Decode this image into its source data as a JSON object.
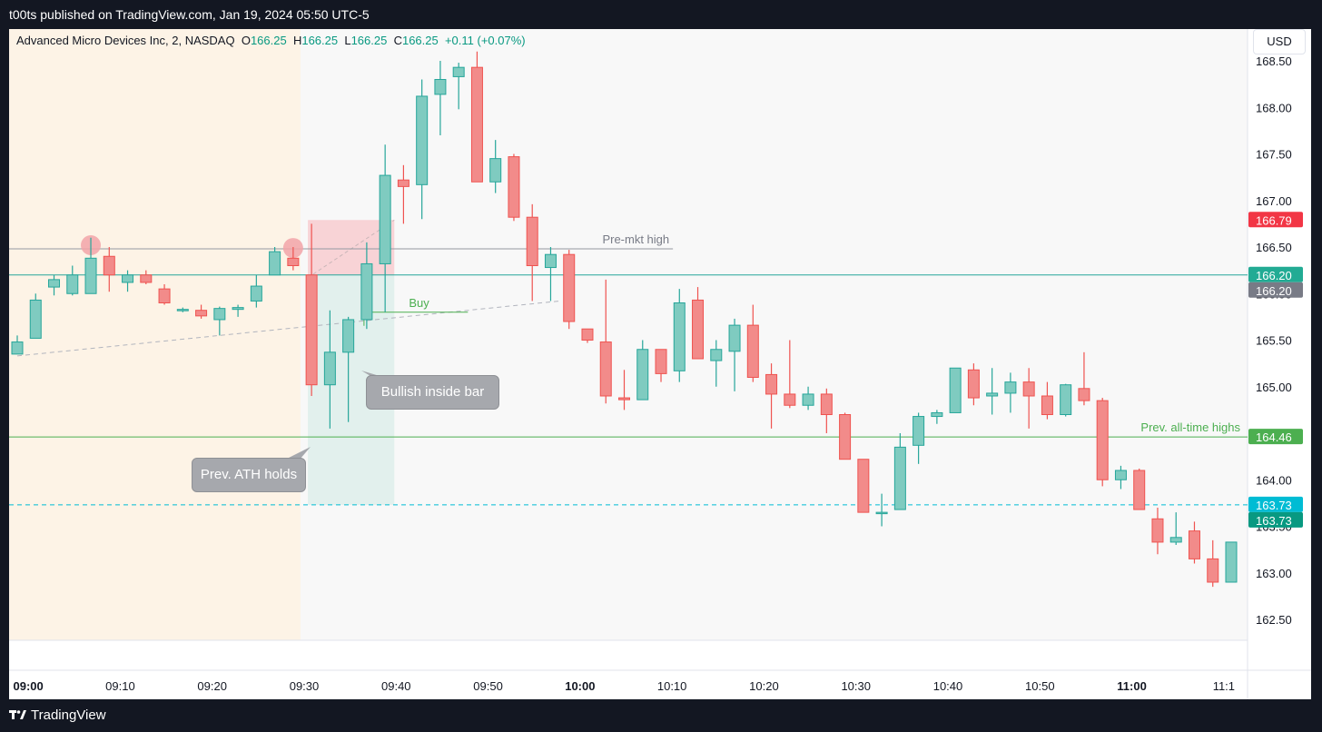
{
  "header": {
    "published_text": "t00ts published on TradingView.com, Jan 19, 2024 05:50 UTC-5"
  },
  "legend": {
    "symbol": "Advanced Micro Devices Inc, 2, NASDAQ",
    "o_label": "O",
    "o_value": "166.25",
    "h_label": "H",
    "h_value": "166.25",
    "l_label": "L",
    "l_value": "166.25",
    "c_label": "C",
    "c_value": "166.25",
    "change": "+0.11 (+0.07%)"
  },
  "currency_button": "USD",
  "footer": {
    "brand": "TradingView"
  },
  "colors": {
    "up": "#26a69a",
    "up_fill": "#7fcbc0",
    "down": "#ef5350",
    "down_fill": "#f28b8a",
    "premarket_bg": "#fdf3e6",
    "plot_bg": "#f8f8f8",
    "green_line": "#4caf50",
    "teal_line": "#26a69a",
    "cyan_dash": "#00bcd4"
  },
  "chart_data": {
    "type": "candlestick",
    "interval_minutes": 2,
    "ylim": [
      162.2,
      168.95
    ],
    "xlim": [
      "08:59",
      "11:12"
    ],
    "y_ticks": [
      "162.50",
      "163.00",
      "163.50",
      "164.00",
      "164.50",
      "165.00",
      "165.50",
      "166.00",
      "166.50",
      "167.00",
      "167.50",
      "168.00",
      "168.50"
    ],
    "x_ticks": [
      {
        "label": "09:00",
        "bold": true
      },
      {
        "label": "09:10",
        "bold": false
      },
      {
        "label": "09:20",
        "bold": false
      },
      {
        "label": "09:30",
        "bold": false
      },
      {
        "label": "09:40",
        "bold": false
      },
      {
        "label": "09:50",
        "bold": false
      },
      {
        "label": "10:00",
        "bold": true
      },
      {
        "label": "10:10",
        "bold": false
      },
      {
        "label": "10:20",
        "bold": false
      },
      {
        "label": "10:30",
        "bold": false
      },
      {
        "label": "10:40",
        "bold": false
      },
      {
        "label": "10:50",
        "bold": false
      },
      {
        "label": "11:00",
        "bold": true
      },
      {
        "label": "11:1",
        "bold": false
      }
    ],
    "premarket_until": "09:29",
    "candles": [
      {
        "t": "08:59",
        "o": 165.35,
        "h": 165.55,
        "l": 165.35,
        "c": 165.48
      },
      {
        "t": "09:01",
        "o": 165.52,
        "h": 166.0,
        "l": 165.52,
        "c": 165.93
      },
      {
        "t": "09:03",
        "o": 166.07,
        "h": 166.2,
        "l": 165.98,
        "c": 166.15
      },
      {
        "t": "09:05",
        "o": 166.0,
        "h": 166.3,
        "l": 165.98,
        "c": 166.2
      },
      {
        "t": "09:07",
        "o": 166.0,
        "h": 166.6,
        "l": 166.0,
        "c": 166.38
      },
      {
        "t": "09:09",
        "o": 166.4,
        "h": 166.5,
        "l": 166.02,
        "c": 166.2
      },
      {
        "t": "09:11",
        "o": 166.12,
        "h": 166.25,
        "l": 166.02,
        "c": 166.2
      },
      {
        "t": "09:13",
        "o": 166.2,
        "h": 166.25,
        "l": 166.1,
        "c": 166.12
      },
      {
        "t": "09:15",
        "o": 166.05,
        "h": 166.1,
        "l": 165.88,
        "c": 165.9
      },
      {
        "t": "09:17",
        "o": 165.83,
        "h": 165.85,
        "l": 165.8,
        "c": 165.83
      },
      {
        "t": "09:19",
        "o": 165.82,
        "h": 165.88,
        "l": 165.73,
        "c": 165.76
      },
      {
        "t": "09:21",
        "o": 165.72,
        "h": 165.86,
        "l": 165.55,
        "c": 165.84
      },
      {
        "t": "09:23",
        "o": 165.83,
        "h": 165.88,
        "l": 165.75,
        "c": 165.85
      },
      {
        "t": "09:25",
        "o": 165.92,
        "h": 166.2,
        "l": 165.85,
        "c": 166.08
      },
      {
        "t": "09:27",
        "o": 166.2,
        "h": 166.5,
        "l": 166.2,
        "c": 166.45
      },
      {
        "t": "09:29",
        "o": 166.38,
        "h": 166.5,
        "l": 166.25,
        "c": 166.3
      },
      {
        "t": "09:31",
        "o": 166.2,
        "h": 166.75,
        "l": 164.9,
        "c": 165.02
      },
      {
        "t": "09:33",
        "o": 165.02,
        "h": 165.82,
        "l": 164.55,
        "c": 165.37
      },
      {
        "t": "09:35",
        "o": 165.37,
        "h": 165.75,
        "l": 164.62,
        "c": 165.72
      },
      {
        "t": "09:37",
        "o": 165.72,
        "h": 166.55,
        "l": 165.62,
        "c": 166.32
      },
      {
        "t": "09:39",
        "o": 166.32,
        "h": 167.6,
        "l": 165.8,
        "c": 167.27
      },
      {
        "t": "09:41",
        "o": 167.22,
        "h": 167.38,
        "l": 166.75,
        "c": 167.15
      },
      {
        "t": "09:43",
        "o": 167.17,
        "h": 168.3,
        "l": 166.8,
        "c": 168.12
      },
      {
        "t": "09:45",
        "o": 168.14,
        "h": 168.5,
        "l": 167.7,
        "c": 168.3
      },
      {
        "t": "09:47",
        "o": 168.33,
        "h": 168.48,
        "l": 167.98,
        "c": 168.43
      },
      {
        "t": "09:49",
        "o": 168.43,
        "h": 168.6,
        "l": 167.2,
        "c": 167.2
      },
      {
        "t": "09:51",
        "o": 167.2,
        "h": 167.65,
        "l": 167.08,
        "c": 167.45
      },
      {
        "t": "09:53",
        "o": 167.47,
        "h": 167.5,
        "l": 166.78,
        "c": 166.82
      },
      {
        "t": "09:55",
        "o": 166.82,
        "h": 166.96,
        "l": 165.92,
        "c": 166.3
      },
      {
        "t": "09:57",
        "o": 166.28,
        "h": 166.5,
        "l": 165.92,
        "c": 166.42
      },
      {
        "t": "09:59",
        "o": 166.42,
        "h": 166.47,
        "l": 165.62,
        "c": 165.7
      },
      {
        "t": "10:01",
        "o": 165.62,
        "h": 165.62,
        "l": 165.47,
        "c": 165.5
      },
      {
        "t": "10:03",
        "o": 165.48,
        "h": 166.15,
        "l": 164.82,
        "c": 164.9
      },
      {
        "t": "10:05",
        "o": 164.88,
        "h": 165.18,
        "l": 164.75,
        "c": 164.86
      },
      {
        "t": "10:07",
        "o": 164.86,
        "h": 165.5,
        "l": 164.86,
        "c": 165.4
      },
      {
        "t": "10:09",
        "o": 165.4,
        "h": 165.4,
        "l": 165.05,
        "c": 165.14
      },
      {
        "t": "10:11",
        "o": 165.17,
        "h": 166.05,
        "l": 165.05,
        "c": 165.9
      },
      {
        "t": "10:13",
        "o": 165.93,
        "h": 166.07,
        "l": 165.3,
        "c": 165.3
      },
      {
        "t": "10:15",
        "o": 165.28,
        "h": 165.5,
        "l": 165.0,
        "c": 165.4
      },
      {
        "t": "10:17",
        "o": 165.38,
        "h": 165.73,
        "l": 164.95,
        "c": 165.66
      },
      {
        "t": "10:19",
        "o": 165.66,
        "h": 165.88,
        "l": 165.05,
        "c": 165.1
      },
      {
        "t": "10:21",
        "o": 165.13,
        "h": 165.25,
        "l": 164.55,
        "c": 164.92
      },
      {
        "t": "10:23",
        "o": 164.92,
        "h": 165.5,
        "l": 164.77,
        "c": 164.8
      },
      {
        "t": "10:25",
        "o": 164.8,
        "h": 165.0,
        "l": 164.75,
        "c": 164.92
      },
      {
        "t": "10:27",
        "o": 164.92,
        "h": 164.98,
        "l": 164.5,
        "c": 164.7
      },
      {
        "t": "10:29",
        "o": 164.7,
        "h": 164.72,
        "l": 164.25,
        "c": 164.22
      },
      {
        "t": "10:31",
        "o": 164.22,
        "h": 164.22,
        "l": 163.65,
        "c": 163.65
      },
      {
        "t": "10:33",
        "o": 163.65,
        "h": 163.85,
        "l": 163.5,
        "c": 163.65
      },
      {
        "t": "10:35",
        "o": 163.68,
        "h": 164.5,
        "l": 163.68,
        "c": 164.35
      },
      {
        "t": "10:37",
        "o": 164.37,
        "h": 164.72,
        "l": 164.17,
        "c": 164.68
      },
      {
        "t": "10:39",
        "o": 164.68,
        "h": 164.75,
        "l": 164.6,
        "c": 164.72
      },
      {
        "t": "10:41",
        "o": 164.72,
        "h": 165.2,
        "l": 164.72,
        "c": 165.2
      },
      {
        "t": "10:43",
        "o": 165.18,
        "h": 165.25,
        "l": 164.8,
        "c": 164.88
      },
      {
        "t": "10:45",
        "o": 164.9,
        "h": 165.2,
        "l": 164.7,
        "c": 164.93
      },
      {
        "t": "10:47",
        "o": 164.93,
        "h": 165.15,
        "l": 164.72,
        "c": 165.05
      },
      {
        "t": "10:49",
        "o": 165.05,
        "h": 165.2,
        "l": 164.55,
        "c": 164.9
      },
      {
        "t": "10:51",
        "o": 164.9,
        "h": 165.05,
        "l": 164.65,
        "c": 164.7
      },
      {
        "t": "10:53",
        "o": 164.7,
        "h": 165.03,
        "l": 164.68,
        "c": 165.02
      },
      {
        "t": "10:55",
        "o": 164.98,
        "h": 165.37,
        "l": 164.8,
        "c": 164.85
      },
      {
        "t": "10:57",
        "o": 164.85,
        "h": 164.88,
        "l": 163.93,
        "c": 164.0
      },
      {
        "t": "10:59",
        "o": 164.0,
        "h": 164.15,
        "l": 163.9,
        "c": 164.1
      },
      {
        "t": "11:01",
        "o": 164.1,
        "h": 164.12,
        "l": 163.68,
        "c": 163.68
      },
      {
        "t": "11:03",
        "o": 163.58,
        "h": 163.7,
        "l": 163.2,
        "c": 163.33
      },
      {
        "t": "11:05",
        "o": 163.33,
        "h": 163.65,
        "l": 163.3,
        "c": 163.38
      },
      {
        "t": "11:07",
        "o": 163.45,
        "h": 163.55,
        "l": 163.1,
        "c": 163.15
      },
      {
        "t": "11:09",
        "o": 163.15,
        "h": 163.35,
        "l": 162.85,
        "c": 162.9
      },
      {
        "t": "11:11",
        "o": 162.9,
        "h": 163.33,
        "l": 162.9,
        "c": 163.33
      }
    ],
    "horizontal_lines": [
      {
        "name": "pre-market-high",
        "price": 166.48,
        "color": "#9598a1",
        "dashed": false,
        "label": "Pre-mkt high",
        "x_from": "08:59",
        "x_to": "10:10"
      },
      {
        "name": "teal-level",
        "price": 166.2,
        "color": "#26a69a",
        "dashed": false,
        "label": "",
        "x_from": "08:59",
        "x_to": "11:12"
      },
      {
        "name": "prev-all-time-high",
        "price": 164.46,
        "color": "#4caf50",
        "dashed": false,
        "label": "Prev. all-time highs",
        "x_from": "08:59",
        "x_to": "11:12"
      },
      {
        "name": "cyan-level",
        "price": 163.73,
        "color": "#00bcd4",
        "dashed": true,
        "label": "",
        "x_from": "08:59",
        "x_to": "11:12"
      }
    ],
    "price_tags": [
      {
        "value": "166.79",
        "price": 166.79,
        "color": "#f23645"
      },
      {
        "value": "166.20",
        "price": 166.2,
        "color": "#22ab94"
      },
      {
        "value": "166.20",
        "price": 166.2,
        "color": "#787b86",
        "stack": 1
      },
      {
        "value": "164.46",
        "price": 164.46,
        "color": "#4caf50"
      },
      {
        "value": "163.73",
        "price": 163.73,
        "color": "#00bcd4"
      },
      {
        "value": "163.73",
        "price": 163.73,
        "color": "#089981",
        "stack": 1
      }
    ],
    "position_tool": {
      "start": "09:31",
      "end": "09:40",
      "entry": 166.2,
      "stop": 166.79,
      "target": 163.73
    },
    "buy_line": {
      "label": "Buy",
      "price": 165.8,
      "x_from": "09:37",
      "x_to": "09:48"
    },
    "trend_line": {
      "from": {
        "t": "08:59",
        "p": 165.33
      },
      "to": {
        "t": "09:58",
        "p": 165.92
      }
    },
    "marker_circles": [
      {
        "t": "09:07",
        "p": 166.5
      },
      {
        "t": "09:29",
        "p": 166.47
      }
    ],
    "callouts": [
      {
        "name": "bullish-inside-bar",
        "text": "Bullish inside bar"
      },
      {
        "name": "prev-ath-holds",
        "text": "Prev. ATH holds"
      }
    ]
  }
}
